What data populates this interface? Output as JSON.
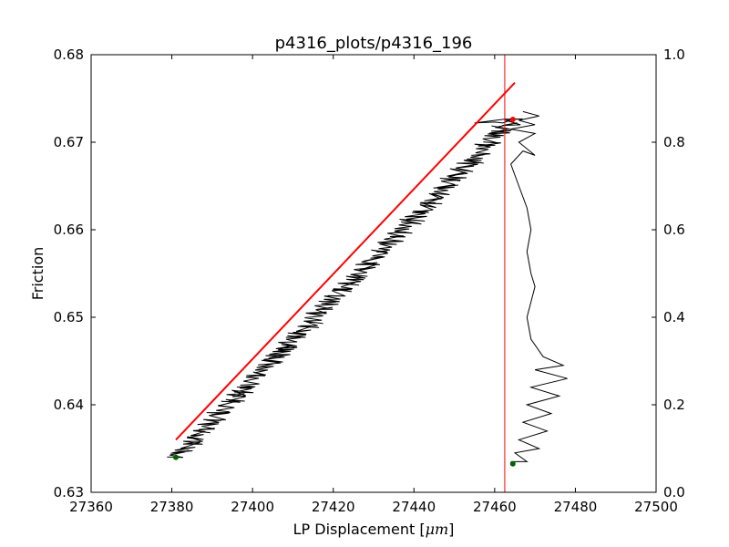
{
  "chart_data": {
    "type": "line",
    "title": "p4316_plots/p4316_196",
    "xlabel": "LP Displacement [",
    "xlabel_unit": "μm",
    "xlabel_close": "]",
    "ylabel": "Friction",
    "xlim": [
      27360,
      27500
    ],
    "ylim": [
      0.63,
      0.68
    ],
    "y2lim": [
      0.0,
      1.0
    ],
    "xticks": [
      27360,
      27380,
      27400,
      27420,
      27440,
      27460,
      27480,
      27500
    ],
    "xtick_labels": [
      "27360",
      "27380",
      "27400",
      "27420",
      "27440",
      "27460",
      "27480",
      "27500"
    ],
    "yticks": [
      0.63,
      0.64,
      0.65,
      0.66,
      0.67,
      0.68
    ],
    "ytick_labels": [
      "0.63",
      "0.64",
      "0.65",
      "0.66",
      "0.67",
      "0.68"
    ],
    "y2ticks": [
      0.0,
      0.2,
      0.4,
      0.6,
      0.8,
      1.0
    ],
    "y2tick_labels": [
      "0.0",
      "0.2",
      "0.4",
      "0.6",
      "0.8",
      "1.0"
    ],
    "friction_trace": {
      "color": "#000000",
      "start": [
        27381,
        0.634
      ],
      "end": [
        27464.5,
        0.6726
      ],
      "noise_amplitude_x": 2.2
    },
    "fit_line": {
      "color": "#ff0000",
      "start": [
        27381,
        0.636
      ],
      "end": [
        27465,
        0.6768
      ]
    },
    "vertical_marker": {
      "color": "#ff0000",
      "x": 27462.5
    },
    "right_axis_trace": {
      "color": "#000000",
      "points": [
        [
          27464,
          0.07
        ],
        [
          27468,
          0.07
        ],
        [
          27465,
          0.09
        ],
        [
          27471,
          0.1
        ],
        [
          27466,
          0.12
        ],
        [
          27473,
          0.14
        ],
        [
          27467,
          0.16
        ],
        [
          27474,
          0.18
        ],
        [
          27468,
          0.2
        ],
        [
          27476,
          0.22
        ],
        [
          27469,
          0.24
        ],
        [
          27478,
          0.26
        ],
        [
          27470,
          0.28
        ],
        [
          27477,
          0.29
        ],
        [
          27472,
          0.31
        ],
        [
          27469,
          0.35
        ],
        [
          27468,
          0.4
        ],
        [
          27470,
          0.47
        ],
        [
          27469,
          0.5
        ],
        [
          27468,
          0.55
        ],
        [
          27469,
          0.6
        ],
        [
          27468,
          0.65
        ],
        [
          27466,
          0.7
        ],
        [
          27464,
          0.75
        ],
        [
          27467,
          0.78
        ],
        [
          27470,
          0.77
        ],
        [
          27466,
          0.8
        ],
        [
          27470,
          0.82
        ],
        [
          27464,
          0.83
        ],
        [
          27470,
          0.84
        ],
        [
          27466,
          0.85
        ],
        [
          27471,
          0.86
        ],
        [
          27467,
          0.87
        ]
      ]
    },
    "markers": [
      {
        "name": "start-marker",
        "color": "#006400",
        "x": 27381,
        "y": 0.634,
        "axis": "left"
      },
      {
        "name": "end-marker",
        "color": "#ff0000",
        "x": 27464.5,
        "y": 0.6726,
        "axis": "left"
      },
      {
        "name": "right-start-marker",
        "color": "#006400",
        "x": 27464.5,
        "y": 0.065,
        "axis": "right"
      }
    ]
  }
}
